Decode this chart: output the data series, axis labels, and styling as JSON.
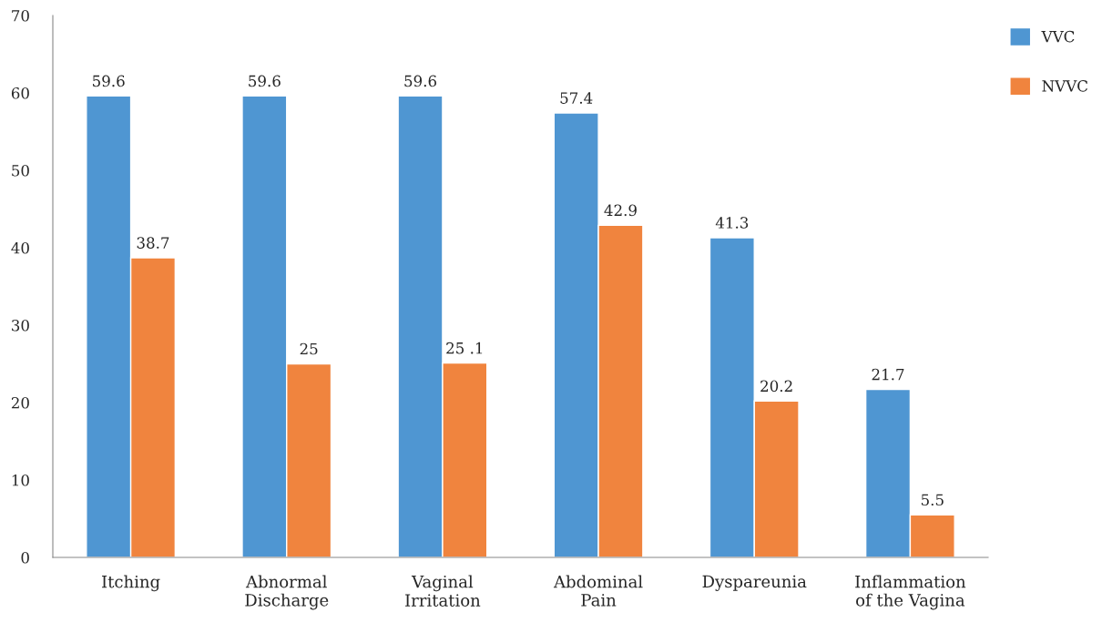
{
  "chart_data": {
    "type": "bar",
    "categories": [
      "Itching",
      "Abnormal\nDischarge",
      "Vaginal\nIrritation",
      "Abdominal\nPain",
      "Dyspareunia",
      "Inflammation\nof the Vagina"
    ],
    "series": [
      {
        "name": "VVC",
        "color": "#4f96d2",
        "values": [
          59.6,
          59.6,
          59.6,
          57.4,
          41.3,
          21.7
        ],
        "value_labels": [
          "59.6",
          "59.6",
          "59.6",
          "57.4",
          "41.3",
          "21.7"
        ]
      },
      {
        "name": "NVVC",
        "color": "#f0843e",
        "values": [
          38.7,
          25,
          25.1,
          42.9,
          20.2,
          5.5
        ],
        "value_labels": [
          "38.7",
          "25",
          "25 .1",
          "42.9",
          "20.2",
          "5.5"
        ]
      }
    ],
    "ylim": [
      0,
      70
    ],
    "yticks": [
      0,
      10,
      20,
      30,
      40,
      50,
      60,
      70
    ],
    "grid": false,
    "legend": "top right"
  }
}
